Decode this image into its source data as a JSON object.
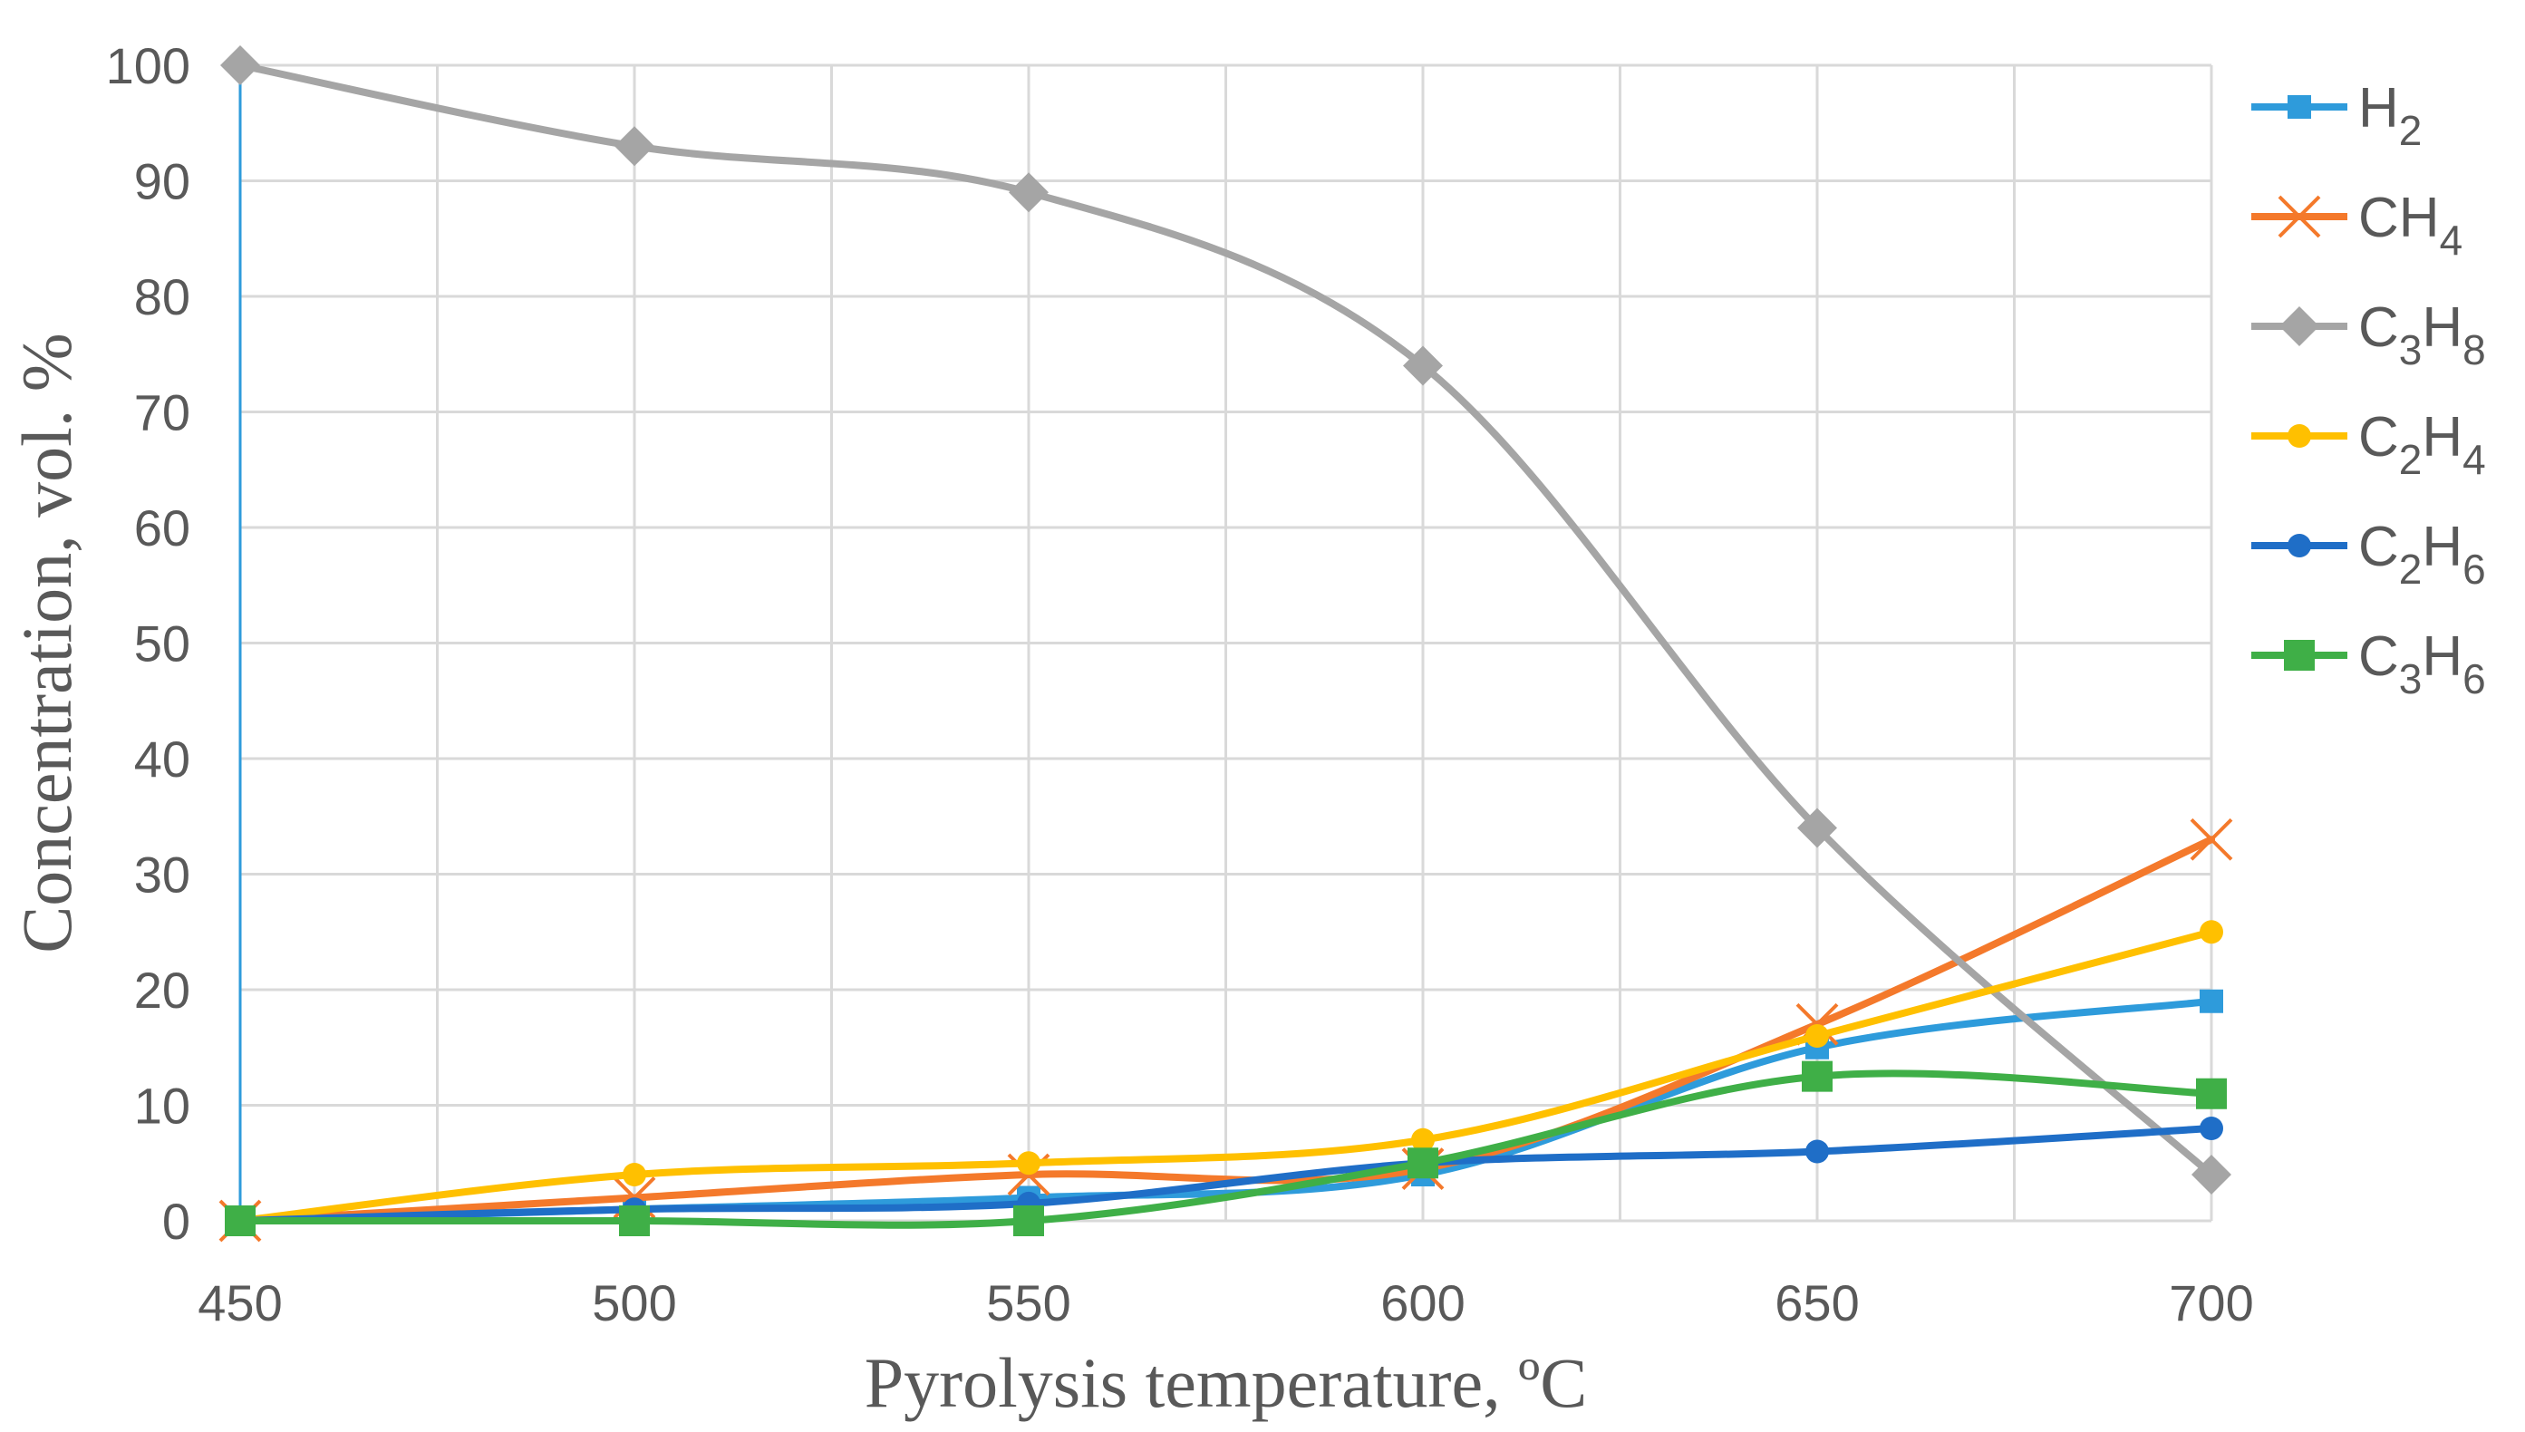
{
  "chart_data": {
    "type": "line",
    "title": "",
    "xlabel": "Pyrolysis temperature, ºC",
    "ylabel": "Concentration, vol. %",
    "x": [
      450,
      500,
      550,
      600,
      650,
      700
    ],
    "xticks": [
      "450",
      "500",
      "550",
      "600",
      "650",
      "700"
    ],
    "yticks": [
      "0",
      "10",
      "20",
      "30",
      "40",
      "50",
      "60",
      "70",
      "80",
      "90",
      "100"
    ],
    "xlim": [
      450,
      700
    ],
    "ylim": [
      0,
      100
    ],
    "grid": true,
    "legend_position": "right",
    "series": [
      {
        "name": "H",
        "sub": "2",
        "marker": "square-small",
        "color": "#2E9BDB",
        "values": [
          0,
          1,
          2,
          4,
          15,
          19
        ]
      },
      {
        "name": "CH",
        "sub": "4",
        "marker": "x",
        "color": "#F4792B",
        "values": [
          0,
          2,
          4,
          4.5,
          17,
          33
        ]
      },
      {
        "name": "C",
        "sub": "3",
        "name2": "H",
        "sub2": "8",
        "marker": "diamond",
        "color": "#A5A5A5",
        "values": [
          100,
          93,
          89,
          74,
          34,
          4
        ]
      },
      {
        "name": "C",
        "sub": "2",
        "name2": "H",
        "sub2": "4",
        "marker": "circle",
        "color": "#FFC000",
        "values": [
          0,
          4,
          5,
          7,
          16,
          25
        ]
      },
      {
        "name": "C",
        "sub": "2",
        "name2": "H",
        "sub2": "6",
        "marker": "circle",
        "color": "#1F6EC7",
        "values": [
          0,
          1,
          1.5,
          5,
          6,
          8
        ]
      },
      {
        "name": "C",
        "sub": "3",
        "name2": "H",
        "sub2": "6",
        "marker": "square",
        "color": "#3FAF47",
        "values": [
          0,
          0,
          0,
          5,
          12.5,
          11
        ]
      }
    ]
  }
}
